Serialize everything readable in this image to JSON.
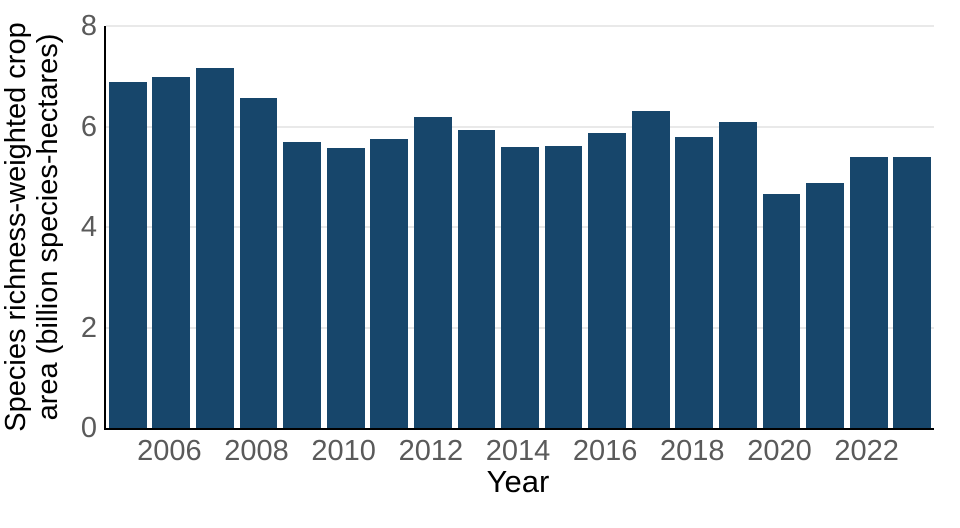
{
  "chart_data": {
    "type": "bar",
    "title": "",
    "xlabel": "Year",
    "ylabel": "Species richness-weighted crop area (billion species-hectares)",
    "ylabel_lines": [
      "Species richness-weighted crop",
      "area (billion species-hectares)"
    ],
    "x": [
      2005,
      2006,
      2007,
      2008,
      2009,
      2010,
      2011,
      2012,
      2013,
      2014,
      2015,
      2016,
      2017,
      2018,
      2019,
      2020,
      2021,
      2022,
      2023
    ],
    "values": [
      6.88,
      6.98,
      7.16,
      6.57,
      5.69,
      5.58,
      5.75,
      6.19,
      5.93,
      5.6,
      5.62,
      5.88,
      6.31,
      5.8,
      6.08,
      4.66,
      4.88,
      5.4,
      5.4
    ],
    "ylim": [
      0,
      8
    ],
    "yticks": [
      0,
      2,
      4,
      6,
      8
    ],
    "xticks": [
      2006,
      2008,
      2010,
      2012,
      2014,
      2016,
      2018,
      2020,
      2022
    ],
    "grid": true,
    "legend_position": "none",
    "colors": {
      "bar": "#17466B",
      "grid": "#E9E9E9",
      "tick_label": "#5A5A5A",
      "axis_label": "#000000",
      "spine": "#000000",
      "background": "#FFFFFF"
    }
  }
}
